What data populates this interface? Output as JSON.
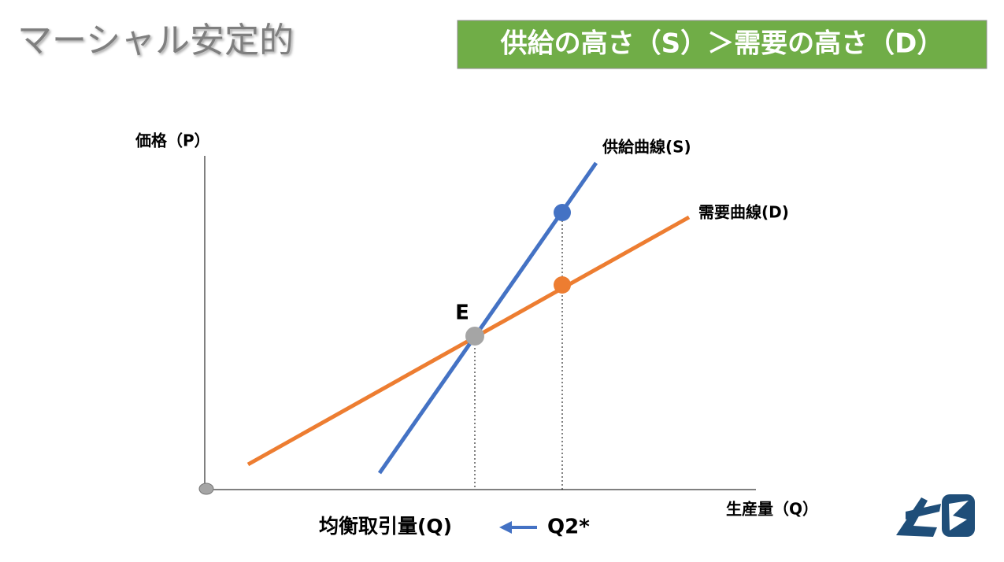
{
  "header": {
    "title": "マーシャル安定的",
    "banner": "供給の高さ（S）＞需要の高さ（D）"
  },
  "diagram": {
    "y_axis_label": "価格（P）",
    "x_axis_label": "生産量（Q）",
    "supply_label": "供給曲線(S)",
    "demand_label": "需要曲線(D)",
    "equilibrium_label": "E",
    "equilibrium_quantity_label": "均衡取引量(Q)",
    "q2_label": "Q2*"
  }
}
